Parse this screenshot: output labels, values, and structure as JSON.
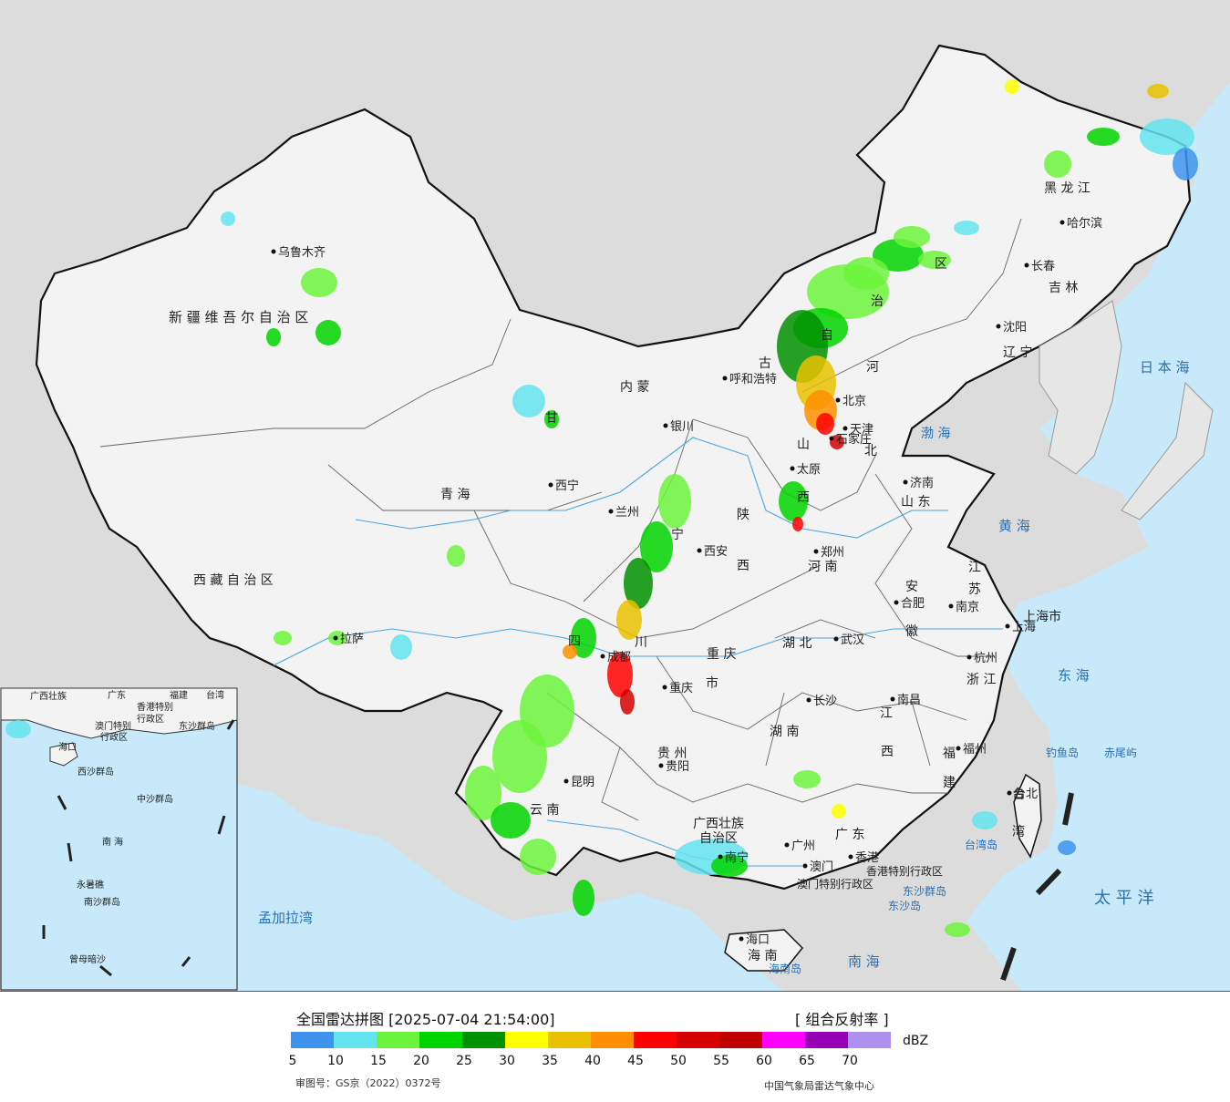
{
  "map": {
    "regions": [
      {
        "name": "新 疆 维 吾 尔 自 治 区",
        "kind": "province"
      },
      {
        "name": "西 藏 自 治 区",
        "kind": "province"
      },
      {
        "name": "青   海",
        "kind": "province"
      },
      {
        "name": "甘",
        "kind": "province"
      },
      {
        "name": "内   蒙",
        "kind": "province"
      },
      {
        "name": "古",
        "kind": "province"
      },
      {
        "name": "自",
        "kind": "province"
      },
      {
        "name": "治",
        "kind": "province"
      },
      {
        "name": "区",
        "kind": "province"
      },
      {
        "name": "黑  龙  江",
        "kind": "province"
      },
      {
        "name": "吉  林",
        "kind": "province"
      },
      {
        "name": "辽  宁",
        "kind": "province"
      },
      {
        "name": "河",
        "kind": "province"
      },
      {
        "name": "北",
        "kind": "province"
      },
      {
        "name": "山",
        "kind": "province"
      },
      {
        "name": "西",
        "kind": "province"
      },
      {
        "name": "山  东",
        "kind": "province"
      },
      {
        "name": "河  南",
        "kind": "province"
      },
      {
        "name": "陕",
        "kind": "province"
      },
      {
        "name": "西",
        "kind": "province"
      },
      {
        "name": "宁",
        "kind": "province"
      },
      {
        "name": "四",
        "kind": "province"
      },
      {
        "name": "川",
        "kind": "province"
      },
      {
        "name": "重 庆",
        "kind": "province"
      },
      {
        "name": "市",
        "kind": "province"
      },
      {
        "name": "湖  北",
        "kind": "province"
      },
      {
        "name": "安",
        "kind": "province"
      },
      {
        "name": "徽",
        "kind": "province"
      },
      {
        "name": "江",
        "kind": "province"
      },
      {
        "name": "苏",
        "kind": "province"
      },
      {
        "name": "上海市",
        "kind": "province"
      },
      {
        "name": "浙  江",
        "kind": "province"
      },
      {
        "name": "江",
        "kind": "province"
      },
      {
        "name": "西",
        "kind": "province"
      },
      {
        "name": "湖  南",
        "kind": "province"
      },
      {
        "name": "福",
        "kind": "province"
      },
      {
        "name": "建",
        "kind": "province"
      },
      {
        "name": "贵  州",
        "kind": "province"
      },
      {
        "name": "云  南",
        "kind": "province"
      },
      {
        "name": "广西壮族",
        "kind": "province"
      },
      {
        "name": "自治区",
        "kind": "province"
      },
      {
        "name": "广  东",
        "kind": "province"
      },
      {
        "name": "海  南",
        "kind": "province"
      },
      {
        "name": "台",
        "kind": "province"
      },
      {
        "name": "湾",
        "kind": "province"
      },
      {
        "name": "香港特别行政区",
        "kind": "province"
      },
      {
        "name": "澳门特别行政区",
        "kind": "province"
      }
    ],
    "cities": [
      {
        "name": "乌鲁木齐"
      },
      {
        "name": "拉萨"
      },
      {
        "name": "西宁"
      },
      {
        "name": "兰州"
      },
      {
        "name": "银川"
      },
      {
        "name": "呼和浩特"
      },
      {
        "name": "北京"
      },
      {
        "name": "天津"
      },
      {
        "name": "石家庄"
      },
      {
        "name": "太原"
      },
      {
        "name": "济南"
      },
      {
        "name": "郑州"
      },
      {
        "name": "西安"
      },
      {
        "name": "成都"
      },
      {
        "name": "重庆"
      },
      {
        "name": "武汉"
      },
      {
        "name": "合肥"
      },
      {
        "name": "南京"
      },
      {
        "name": "上海"
      },
      {
        "name": "杭州"
      },
      {
        "name": "南昌"
      },
      {
        "name": "长沙"
      },
      {
        "name": "福州"
      },
      {
        "name": "贵阳"
      },
      {
        "name": "昆明"
      },
      {
        "name": "南宁"
      },
      {
        "name": "广州"
      },
      {
        "name": "香港"
      },
      {
        "name": "澳门"
      },
      {
        "name": "海口"
      },
      {
        "name": "台北"
      },
      {
        "name": "沈阳"
      },
      {
        "name": "长春"
      },
      {
        "name": "哈尔滨"
      }
    ],
    "seas": [
      {
        "name": "日 本 海"
      },
      {
        "name": "渤 海"
      },
      {
        "name": "黄  海"
      },
      {
        "name": "东  海"
      },
      {
        "name": "太  平  洋"
      },
      {
        "name": "南  海"
      },
      {
        "name": "孟加拉湾"
      }
    ],
    "islands": [
      {
        "name": "钓鱼岛"
      },
      {
        "name": "赤尾屿"
      },
      {
        "name": "台湾岛"
      },
      {
        "name": "东沙群岛"
      },
      {
        "name": "东沙岛"
      },
      {
        "name": "海南岛"
      }
    ],
    "inset": {
      "labels": [
        "广西壮族",
        "广东",
        "福建",
        "台湾",
        "香港特别",
        "行政区",
        "澳门特别",
        "行政区",
        "东沙群岛",
        "海口",
        "西沙群岛",
        "中沙群岛",
        "南  海",
        "永暑礁",
        "南沙群岛",
        "曾母暗沙"
      ]
    }
  },
  "footer": {
    "title": "全国雷达拼图 [2025-07-04 21:54:00]",
    "product": "[ 组合反射率 ]",
    "unit": "dBZ",
    "approval": "审图号：GS京（2022）0372号",
    "credit": "中国气象局雷达气象中心"
  },
  "legend": {
    "colors": [
      "#3d93ee",
      "#64e4ee",
      "#6cf33c",
      "#00d400",
      "#009100",
      "#ffff00",
      "#e9c100",
      "#ff8f00",
      "#ff0000",
      "#d60000",
      "#c00000",
      "#ff00ff",
      "#9500b4",
      "#ae90ee"
    ],
    "ticks": [
      "5",
      "10",
      "15",
      "20",
      "25",
      "30",
      "35",
      "40",
      "45",
      "50",
      "55",
      "60",
      "65",
      "70"
    ]
  }
}
